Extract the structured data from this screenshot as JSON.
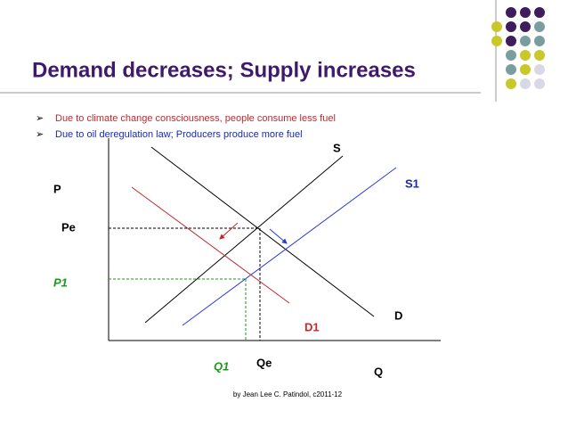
{
  "header": {
    "title": "Demand decreases; Supply increases"
  },
  "bullets": [
    "Due to climate change consciousness, people consume less fuel",
    "Due to oil deregulation law; Producers produce more fuel"
  ],
  "diagram": {
    "labels": {
      "s": "S",
      "s1": "S1",
      "p": "P",
      "pe": "Pe",
      "p1": "P1",
      "d": "D",
      "d1": "D1",
      "q1": "Q1",
      "qe": "Qe",
      "q": "Q"
    }
  },
  "footer": "by Jean Lee C. Patindol, c2011-12"
}
